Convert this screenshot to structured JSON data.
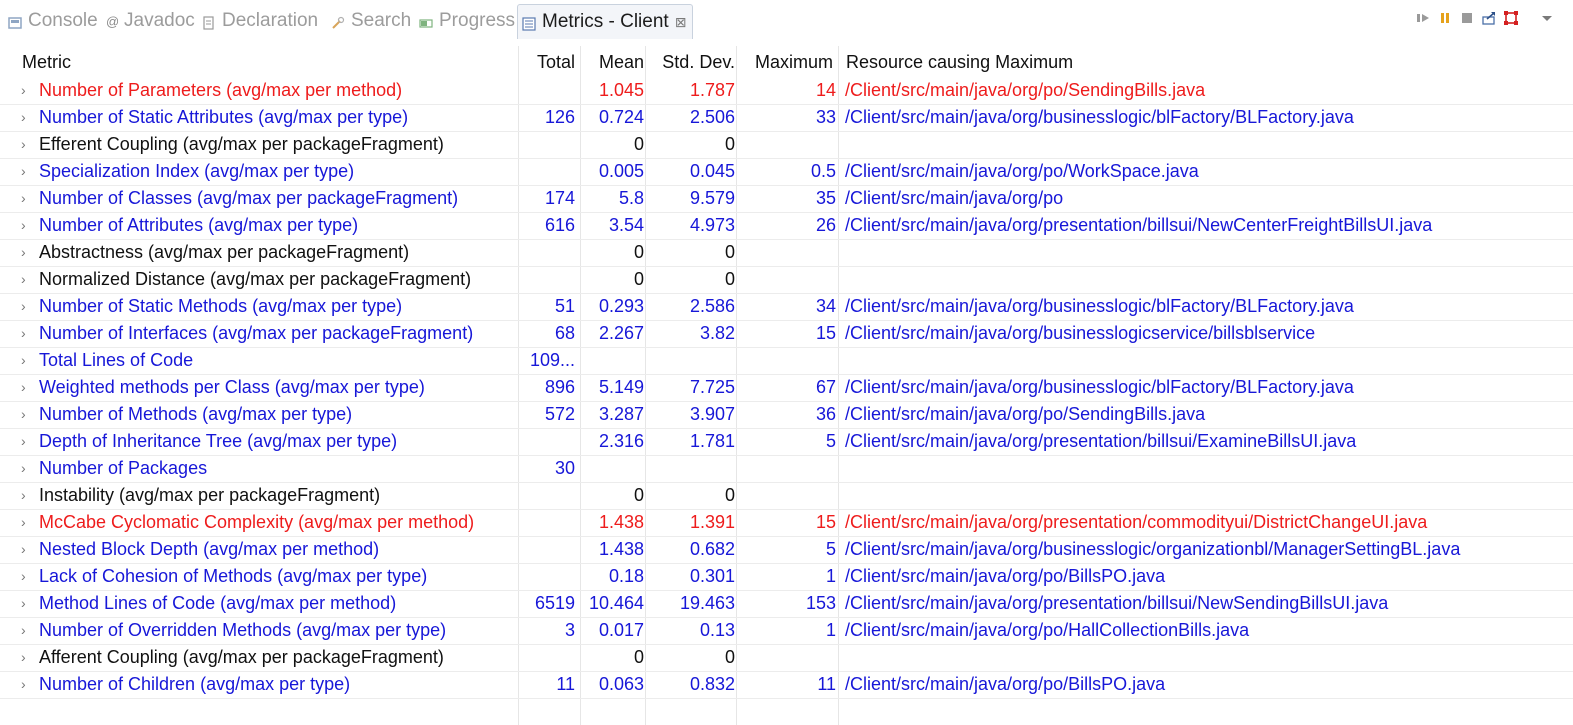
{
  "tabs": [
    {
      "label": "Console",
      "icon": "console-icon",
      "active": false
    },
    {
      "label": "Javadoc",
      "icon": "at-icon",
      "active": false
    },
    {
      "label": "Declaration",
      "icon": "declaration-icon",
      "active": false
    },
    {
      "label": "Search",
      "icon": "search-icon",
      "active": false
    },
    {
      "label": "Progress",
      "icon": "progress-icon",
      "active": false
    },
    {
      "label": "Metrics - Client",
      "icon": "metrics-icon",
      "active": true,
      "close": "⊠"
    }
  ],
  "toolbar": [
    "play-icon",
    "pause-icon",
    "stop-icon",
    "export-icon",
    "layout-icon",
    "view-menu-icon"
  ],
  "columns": {
    "metric": "Metric",
    "total": "Total",
    "mean": "Mean",
    "std_dev": "Std. Dev.",
    "maximum": "Maximum",
    "resource": "Resource causing Maximum"
  },
  "colors": {
    "blue": "#1717d8",
    "red": "#ee1c1c",
    "black": "#111111"
  },
  "rows": [
    {
      "metric": "Number of Parameters (avg/max per method)",
      "total": "",
      "mean": "1.045",
      "std_dev": "1.787",
      "maximum": "14",
      "resource": "/Client/src/main/java/org/po/SendingBills.java",
      "color": "red"
    },
    {
      "metric": "Number of Static Attributes (avg/max per type)",
      "total": "126",
      "mean": "0.724",
      "std_dev": "2.506",
      "maximum": "33",
      "resource": "/Client/src/main/java/org/businesslogic/blFactory/BLFactory.java",
      "color": "blue"
    },
    {
      "metric": "Efferent Coupling (avg/max per packageFragment)",
      "total": "",
      "mean": "0",
      "std_dev": "0",
      "maximum": "",
      "resource": "",
      "color": "black"
    },
    {
      "metric": "Specialization Index (avg/max per type)",
      "total": "",
      "mean": "0.005",
      "std_dev": "0.045",
      "maximum": "0.5",
      "resource": "/Client/src/main/java/org/po/WorkSpace.java",
      "color": "blue"
    },
    {
      "metric": "Number of Classes (avg/max per packageFragment)",
      "total": "174",
      "mean": "5.8",
      "std_dev": "9.579",
      "maximum": "35",
      "resource": "/Client/src/main/java/org/po",
      "color": "blue"
    },
    {
      "metric": "Number of Attributes (avg/max per type)",
      "total": "616",
      "mean": "3.54",
      "std_dev": "4.973",
      "maximum": "26",
      "resource": "/Client/src/main/java/org/presentation/billsui/NewCenterFreightBillsUI.java",
      "color": "blue"
    },
    {
      "metric": "Abstractness (avg/max per packageFragment)",
      "total": "",
      "mean": "0",
      "std_dev": "0",
      "maximum": "",
      "resource": "",
      "color": "black"
    },
    {
      "metric": "Normalized Distance (avg/max per packageFragment)",
      "total": "",
      "mean": "0",
      "std_dev": "0",
      "maximum": "",
      "resource": "",
      "color": "black"
    },
    {
      "metric": "Number of Static Methods (avg/max per type)",
      "total": "51",
      "mean": "0.293",
      "std_dev": "2.586",
      "maximum": "34",
      "resource": "/Client/src/main/java/org/businesslogic/blFactory/BLFactory.java",
      "color": "blue"
    },
    {
      "metric": "Number of Interfaces (avg/max per packageFragment)",
      "total": "68",
      "mean": "2.267",
      "std_dev": "3.82",
      "maximum": "15",
      "resource": "/Client/src/main/java/org/businesslogicservice/billsblservice",
      "color": "blue"
    },
    {
      "metric": "Total Lines of Code",
      "total": "109...",
      "mean": "",
      "std_dev": "",
      "maximum": "",
      "resource": "",
      "color": "blue"
    },
    {
      "metric": "Weighted methods per Class (avg/max per type)",
      "total": "896",
      "mean": "5.149",
      "std_dev": "7.725",
      "maximum": "67",
      "resource": "/Client/src/main/java/org/businesslogic/blFactory/BLFactory.java",
      "color": "blue"
    },
    {
      "metric": "Number of Methods (avg/max per type)",
      "total": "572",
      "mean": "3.287",
      "std_dev": "3.907",
      "maximum": "36",
      "resource": "/Client/src/main/java/org/po/SendingBills.java",
      "color": "blue"
    },
    {
      "metric": "Depth of Inheritance Tree (avg/max per type)",
      "total": "",
      "mean": "2.316",
      "std_dev": "1.781",
      "maximum": "5",
      "resource": "/Client/src/main/java/org/presentation/billsui/ExamineBillsUI.java",
      "color": "blue"
    },
    {
      "metric": "Number of Packages",
      "total": "30",
      "mean": "",
      "std_dev": "",
      "maximum": "",
      "resource": "",
      "color": "blue"
    },
    {
      "metric": "Instability (avg/max per packageFragment)",
      "total": "",
      "mean": "0",
      "std_dev": "0",
      "maximum": "",
      "resource": "",
      "color": "black"
    },
    {
      "metric": "McCabe Cyclomatic Complexity (avg/max per method)",
      "total": "",
      "mean": "1.438",
      "std_dev": "1.391",
      "maximum": "15",
      "resource": "/Client/src/main/java/org/presentation/commodityui/DistrictChangeUI.java",
      "color": "red"
    },
    {
      "metric": "Nested Block Depth (avg/max per method)",
      "total": "",
      "mean": "1.438",
      "std_dev": "0.682",
      "maximum": "5",
      "resource": "/Client/src/main/java/org/businesslogic/organizationbl/ManagerSettingBL.java",
      "color": "blue"
    },
    {
      "metric": "Lack of Cohesion of Methods (avg/max per type)",
      "total": "",
      "mean": "0.18",
      "std_dev": "0.301",
      "maximum": "1",
      "resource": "/Client/src/main/java/org/po/BillsPO.java",
      "color": "blue"
    },
    {
      "metric": "Method Lines of Code (avg/max per method)",
      "total": "6519",
      "mean": "10.464",
      "std_dev": "19.463",
      "maximum": "153",
      "resource": "/Client/src/main/java/org/presentation/billsui/NewSendingBillsUI.java",
      "color": "blue"
    },
    {
      "metric": "Number of Overridden Methods (avg/max per type)",
      "total": "3",
      "mean": "0.017",
      "std_dev": "0.13",
      "maximum": "1",
      "resource": "/Client/src/main/java/org/po/HallCollectionBills.java",
      "color": "blue"
    },
    {
      "metric": "Afferent Coupling (avg/max per packageFragment)",
      "total": "",
      "mean": "0",
      "std_dev": "0",
      "maximum": "",
      "resource": "",
      "color": "black"
    },
    {
      "metric": "Number of Children (avg/max per type)",
      "total": "11",
      "mean": "0.063",
      "std_dev": "0.832",
      "maximum": "11",
      "resource": "/Client/src/main/java/org/po/BillsPO.java",
      "color": "blue"
    }
  ]
}
